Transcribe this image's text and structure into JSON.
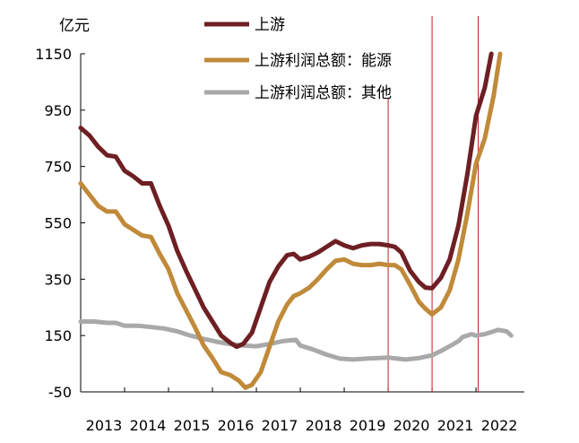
{
  "chart_data": {
    "type": "line",
    "unit_label": "亿元",
    "ylim": [
      -50,
      1150
    ],
    "yticks": [
      1150,
      950,
      750,
      550,
      350,
      150,
      -50
    ],
    "xlim": [
      2013,
      2023.1
    ],
    "xticks": [
      2013,
      2014,
      2015,
      2016,
      2017,
      2018,
      2019,
      2020,
      2021,
      2022
    ],
    "grid": false,
    "legend": "top-center",
    "vlines": [
      2020.0,
      2021.0,
      2022.05
    ],
    "vline_color": "#c0201e",
    "series": [
      {
        "name": "上游",
        "color": "#6e1f23",
        "x": [
          2013.0,
          2013.2,
          2013.4,
          2013.6,
          2013.8,
          2014.0,
          2014.2,
          2014.4,
          2014.6,
          2014.8,
          2015.0,
          2015.2,
          2015.4,
          2015.6,
          2015.8,
          2016.0,
          2016.2,
          2016.4,
          2016.55,
          2016.7,
          2016.9,
          2017.1,
          2017.3,
          2017.5,
          2017.7,
          2017.85,
          2018.0,
          2018.2,
          2018.4,
          2018.6,
          2018.8,
          2019.0,
          2019.2,
          2019.4,
          2019.6,
          2019.8,
          2020.0,
          2020.15,
          2020.3,
          2020.5,
          2020.7,
          2020.85,
          2021.0,
          2021.2,
          2021.4,
          2021.6,
          2021.8,
          2022.0,
          2022.2,
          2022.35
        ],
        "values": [
          887,
          860,
          820,
          790,
          785,
          735,
          715,
          690,
          690,
          610,
          540,
          450,
          380,
          315,
          250,
          200,
          150,
          125,
          110,
          120,
          160,
          250,
          340,
          395,
          435,
          440,
          420,
          430,
          445,
          465,
          485,
          470,
          460,
          470,
          475,
          475,
          470,
          465,
          445,
          380,
          340,
          320,
          318,
          355,
          420,
          540,
          720,
          930,
          1030,
          1150
        ]
      },
      {
        "name": "上游利润总额：能源",
        "color": "#c08a3a",
        "x": [
          2013.0,
          2013.2,
          2013.4,
          2013.6,
          2013.8,
          2014.0,
          2014.2,
          2014.4,
          2014.6,
          2014.8,
          2015.0,
          2015.2,
          2015.4,
          2015.6,
          2015.8,
          2016.0,
          2016.2,
          2016.4,
          2016.6,
          2016.75,
          2016.9,
          2017.1,
          2017.3,
          2017.5,
          2017.7,
          2017.85,
          2018.0,
          2018.2,
          2018.4,
          2018.6,
          2018.8,
          2019.0,
          2019.2,
          2019.4,
          2019.6,
          2019.8,
          2020.0,
          2020.15,
          2020.3,
          2020.5,
          2020.7,
          2020.85,
          2021.0,
          2021.2,
          2021.4,
          2021.6,
          2021.8,
          2022.0,
          2022.2,
          2022.4,
          2022.55
        ],
        "values": [
          690,
          650,
          610,
          590,
          590,
          545,
          525,
          505,
          500,
          440,
          385,
          300,
          240,
          180,
          115,
          70,
          20,
          10,
          -10,
          -35,
          -25,
          20,
          110,
          200,
          260,
          290,
          300,
          320,
          350,
          385,
          415,
          420,
          405,
          400,
          400,
          405,
          400,
          400,
          385,
          330,
          270,
          245,
          225,
          250,
          310,
          420,
          580,
          760,
          850,
          1000,
          1150
        ]
      },
      {
        "name": "上游利润总额：其他",
        "color": "#a9a9a9",
        "x": [
          2013.0,
          2013.3,
          2013.6,
          2013.8,
          2014.0,
          2014.3,
          2014.6,
          2014.9,
          2015.2,
          2015.5,
          2015.8,
          2016.1,
          2016.4,
          2016.7,
          2017.0,
          2017.3,
          2017.6,
          2017.9,
          2018.0,
          2018.3,
          2018.6,
          2018.9,
          2019.2,
          2019.5,
          2019.8,
          2020.0,
          2020.2,
          2020.4,
          2020.7,
          2021.0,
          2021.2,
          2021.4,
          2021.6,
          2021.7,
          2021.9,
          2022.0,
          2022.2,
          2022.4,
          2022.5,
          2022.7,
          2022.8
        ],
        "values": [
          200,
          200,
          195,
          195,
          185,
          185,
          180,
          175,
          165,
          150,
          138,
          128,
          120,
          115,
          112,
          120,
          130,
          135,
          115,
          100,
          82,
          68,
          65,
          68,
          70,
          72,
          68,
          65,
          70,
          80,
          95,
          112,
          130,
          145,
          155,
          150,
          155,
          165,
          170,
          165,
          150
        ]
      }
    ]
  }
}
